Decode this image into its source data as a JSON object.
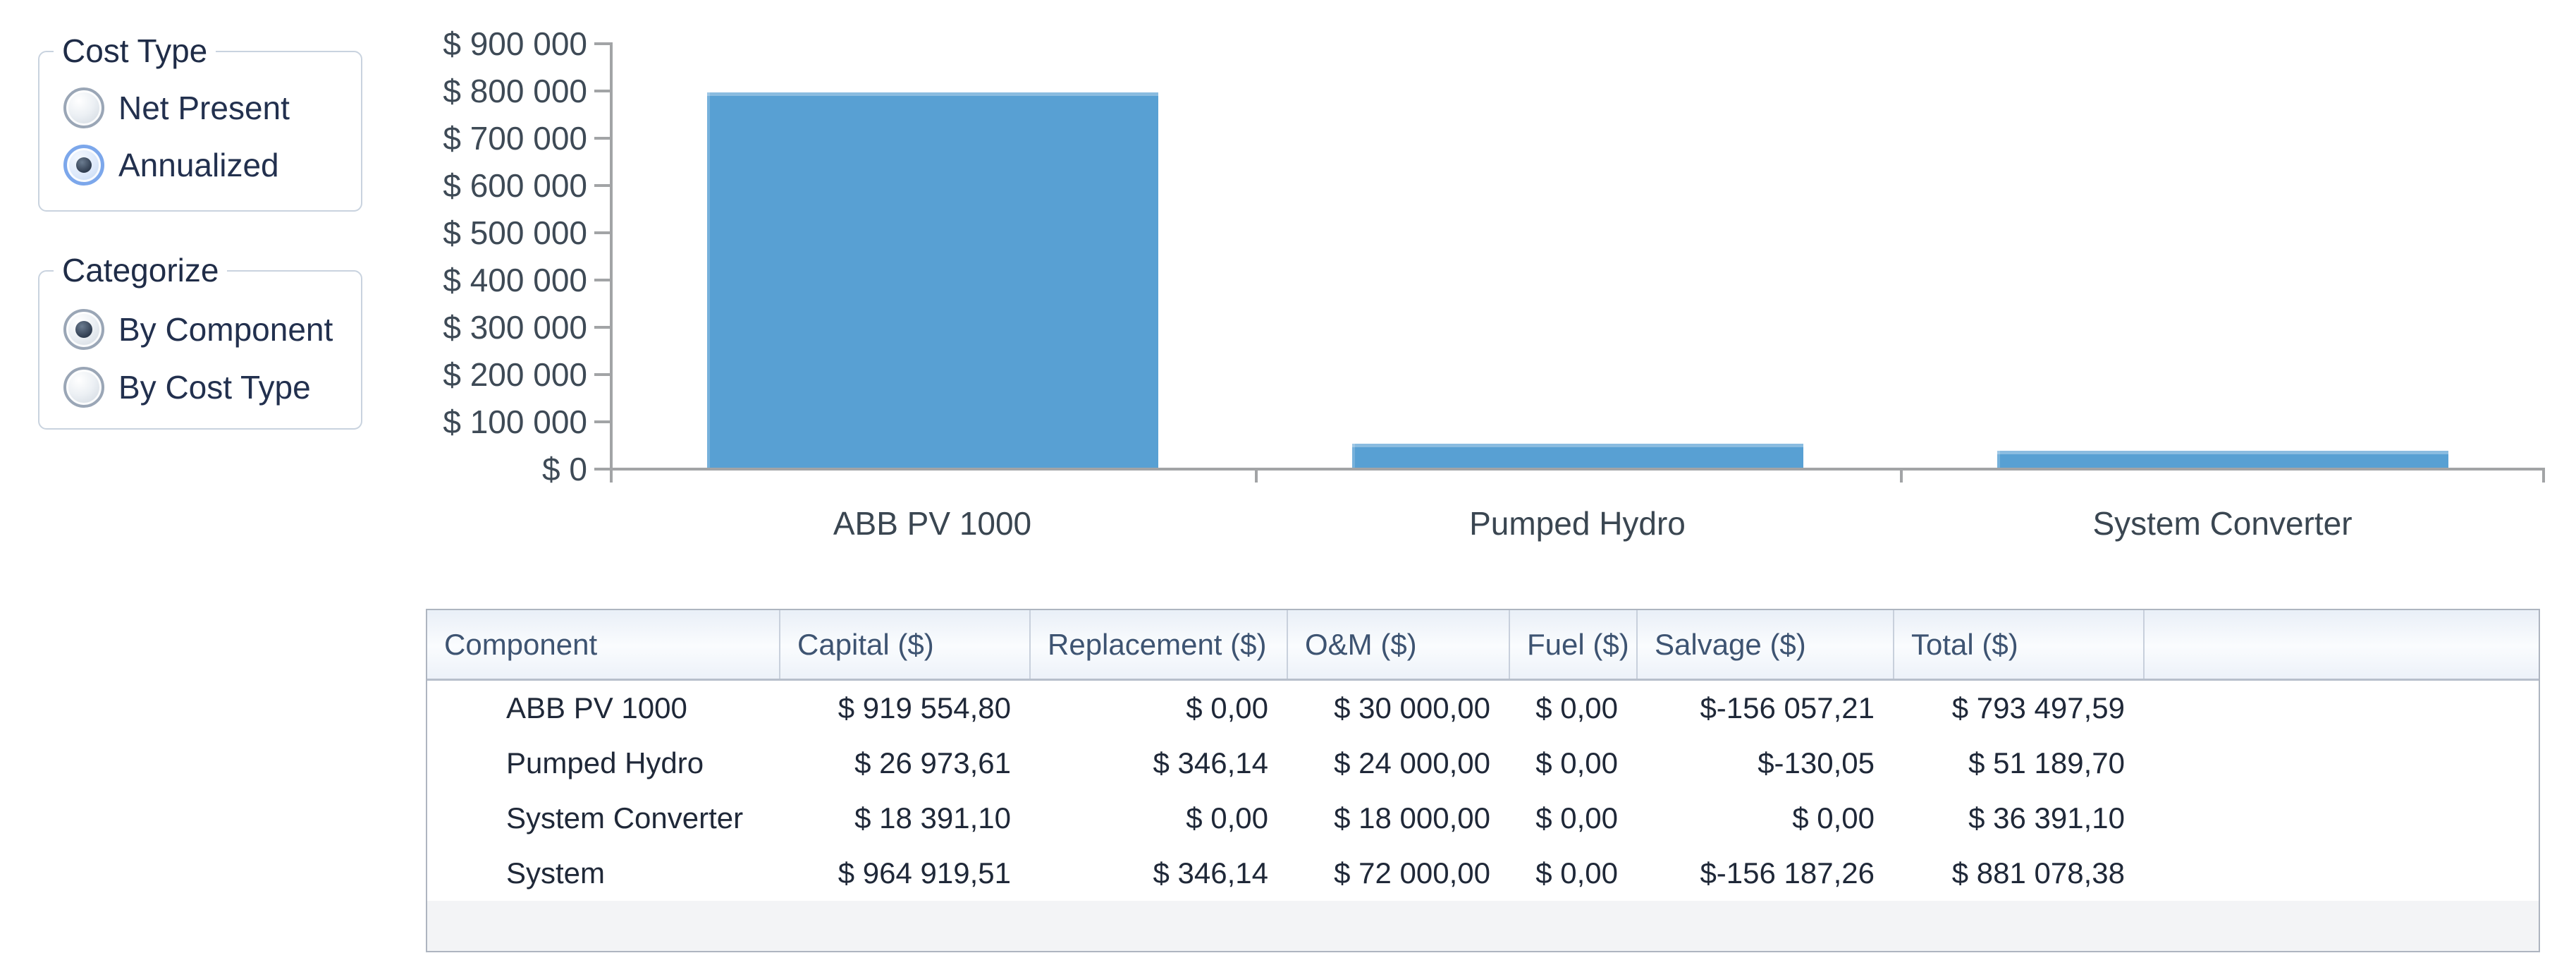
{
  "controls": {
    "cost_type": {
      "title": "Cost Type",
      "options": [
        {
          "label": "Net Present",
          "selected": false
        },
        {
          "label": "Annualized",
          "selected": true
        }
      ]
    },
    "categorize": {
      "title": "Categorize",
      "options": [
        {
          "label": "By Component",
          "selected": true
        },
        {
          "label": "By Cost Type",
          "selected": false
        }
      ]
    }
  },
  "chart_data": {
    "type": "bar",
    "title": "",
    "categories": [
      "ABB PV 1000",
      "Pumped Hydro",
      "System Converter"
    ],
    "values": [
      793497.59,
      51189.7,
      36391.1
    ],
    "xlabel": "",
    "ylabel": "",
    "ylim": [
      0,
      900000
    ],
    "ytick_step": 100000,
    "ytick_labels": [
      "$ 0",
      "$ 100 000",
      "$ 200 000",
      "$ 300 000",
      "$ 400 000",
      "$ 500 000",
      "$ 600 000",
      "$ 700 000",
      "$ 800 000",
      "$ 900 000"
    ],
    "grid": false,
    "legend_position": "none",
    "bar_color": "#58A0D3",
    "axis_color": "#A2A4A6"
  },
  "table": {
    "columns": [
      "Component",
      "Capital ($)",
      "Replacement ($)",
      "O&M ($)",
      "Fuel ($)",
      "Salvage ($)",
      "Total ($)",
      ""
    ],
    "rows": [
      [
        "ABB PV 1000",
        "$ 919 554,80",
        "$ 0,00",
        "$ 30 000,00",
        "$ 0,00",
        "$-156 057,21",
        "$ 793 497,59",
        ""
      ],
      [
        "Pumped Hydro",
        "$ 26 973,61",
        "$ 346,14",
        "$ 24 000,00",
        "$ 0,00",
        "$-130,05",
        "$ 51 189,70",
        ""
      ],
      [
        "System Converter",
        "$ 18 391,10",
        "$ 0,00",
        "$ 18 000,00",
        "$ 0,00",
        "$ 0,00",
        "$ 36 391,10",
        ""
      ],
      [
        "System",
        "$ 964 919,51",
        "$ 346,14",
        "$ 72 000,00",
        "$ 0,00",
        "$-156 187,26",
        "$ 881 078,38",
        ""
      ]
    ]
  }
}
